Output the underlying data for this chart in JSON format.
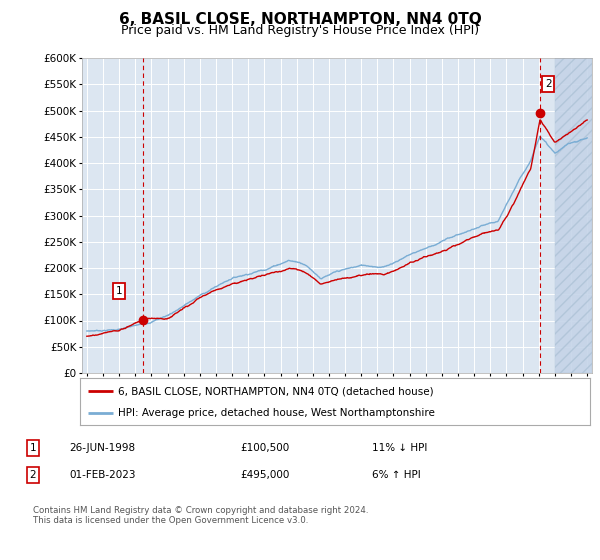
{
  "title": "6, BASIL CLOSE, NORTHAMPTON, NN4 0TQ",
  "subtitle": "Price paid vs. HM Land Registry's House Price Index (HPI)",
  "x_start_year": 1995,
  "x_end_year": 2026,
  "y_min": 0,
  "y_max": 600000,
  "y_ticks": [
    0,
    50000,
    100000,
    150000,
    200000,
    250000,
    300000,
    350000,
    400000,
    450000,
    500000,
    550000,
    600000
  ],
  "sale1_year": 1998.49,
  "sale1_price": 100500,
  "sale2_year": 2023.08,
  "sale2_price": 495000,
  "legend_label_red": "6, BASIL CLOSE, NORTHAMPTON, NN4 0TQ (detached house)",
  "legend_label_blue": "HPI: Average price, detached house, West Northamptonshire",
  "table_row1_num": "1",
  "table_row1_date": "26-JUN-1998",
  "table_row1_price": "£100,500",
  "table_row1_hpi": "11% ↓ HPI",
  "table_row2_num": "2",
  "table_row2_date": "01-FEB-2023",
  "table_row2_price": "£495,000",
  "table_row2_hpi": "6% ↑ HPI",
  "footer": "Contains HM Land Registry data © Crown copyright and database right 2024.\nThis data is licensed under the Open Government Licence v3.0.",
  "bg_color": "#dce6f1",
  "hatch_color": "#c5d4e8",
  "grid_color": "#ffffff",
  "line_red": "#cc0000",
  "line_blue": "#7aadd4",
  "title_fontsize": 11,
  "subtitle_fontsize": 9,
  "hpi_base": 80000,
  "hpi_at_1995": 80000,
  "hpi_at_2000": 110000,
  "hpi_at_2004": 175000,
  "hpi_at_2008": 220000,
  "hpi_at_2009": 195000,
  "hpi_at_2013": 210000,
  "hpi_at_2016": 255000,
  "hpi_at_2020": 295000,
  "hpi_at_2022": 410000,
  "hpi_at_2023": 430000,
  "hpi_at_2024": 415000,
  "hpi_at_2026": 430000
}
